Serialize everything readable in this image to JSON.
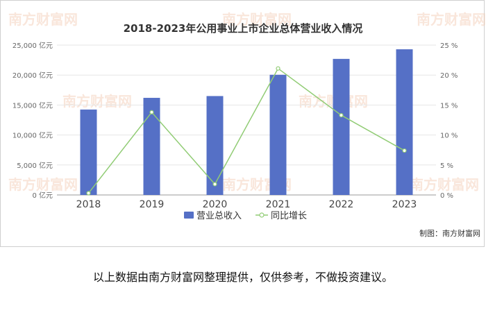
{
  "page": {
    "watermark": "南方财富网",
    "footnote": "以上数据由南方财富网整理提供，仅供参考，不做投资建议。"
  },
  "colors": {
    "bar": "#5570c6",
    "line": "#91cc75",
    "grid": "#e6e6e6",
    "axis_text": "#666666"
  },
  "chart_data": {
    "type": "bar",
    "title": "2018-2023年公用事业上市企业总体营业收入情况",
    "credit": "制图：南方财富网",
    "categories": [
      "2018",
      "2019",
      "2020",
      "2021",
      "2022",
      "2023"
    ],
    "series": [
      {
        "name": "营业总收入",
        "type": "bar",
        "axis": "left",
        "values": [
          14250,
          16200,
          16500,
          20050,
          22700,
          24300
        ]
      },
      {
        "name": "同比增长",
        "type": "line",
        "axis": "right",
        "values": [
          0.3,
          13.8,
          1.8,
          21.1,
          13.3,
          7.4
        ]
      }
    ],
    "y_left": {
      "min": 0,
      "max": 25000,
      "ticks": [
        0,
        5000,
        10000,
        15000,
        20000,
        25000
      ],
      "labels": [
        "0 亿元",
        "5,000 亿元",
        "10,000 亿元",
        "15,000 亿元",
        "20,000 亿元",
        "25,000 亿元"
      ]
    },
    "y_right": {
      "min": 0,
      "max": 25,
      "ticks": [
        0,
        5,
        10,
        15,
        20,
        25
      ],
      "labels": [
        "0 %",
        "5 %",
        "10 %",
        "15 %",
        "20 %",
        "25 %"
      ]
    },
    "grid": true,
    "legend_position": "bottom"
  }
}
